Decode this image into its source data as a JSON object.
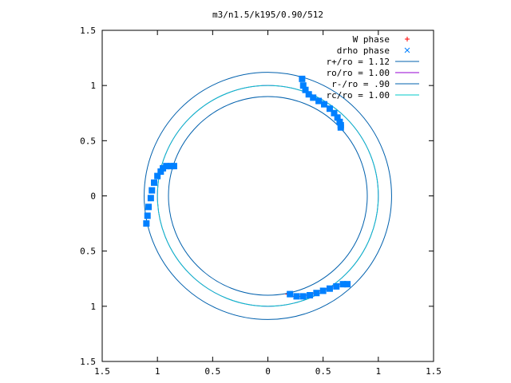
{
  "chart_data": {
    "type": "scatter",
    "title": "m3/n1.5/k195/0.90/512",
    "xlabel": "",
    "ylabel": "",
    "xlim": [
      -1.5,
      1.5
    ],
    "ylim": [
      -1.5,
      1.5
    ],
    "grid": false,
    "legend_position": "top-right",
    "x_tick_labels": [
      "1.5",
      "1",
      "0.5",
      "0",
      "0.5",
      "1",
      "1.5"
    ],
    "y_tick_labels": [
      "1.5",
      "1",
      "0.5",
      "0",
      "0.5",
      "1",
      "1.5"
    ],
    "x_ticks": [
      -1.5,
      -1.0,
      -0.5,
      0,
      0.5,
      1.0,
      1.5
    ],
    "y_ticks": [
      1.5,
      1.0,
      0.5,
      0,
      -0.5,
      -1.0,
      -1.5
    ],
    "series": [
      {
        "name": "W phase",
        "marker": "plus",
        "color": "#ff0000",
        "x": [
          -1.1,
          -1.09,
          -1.08,
          -1.06,
          -1.05,
          -1.03,
          -1.0,
          -0.97,
          -0.95,
          -0.92,
          -0.88,
          -0.85,
          0.18,
          0.24,
          0.3,
          0.36,
          0.42,
          0.48,
          0.54,
          0.6,
          0.66,
          0.72
        ],
        "y": [
          -0.25,
          -0.18,
          -0.1,
          -0.02,
          0.05,
          0.12,
          0.18,
          0.22,
          0.25,
          0.27,
          0.27,
          0.27,
          -0.89,
          -0.91,
          -0.91,
          -0.9,
          -0.88,
          -0.86,
          -0.84,
          -0.82,
          -0.8,
          -0.8
        ]
      },
      {
        "name": "drho phase",
        "marker": "cross",
        "color": "#0080ff",
        "x": [
          -1.1,
          -1.09,
          -1.08,
          -1.06,
          -1.05,
          -1.03,
          -1.0,
          -0.97,
          -0.95,
          -0.92,
          -0.88,
          -0.85,
          0.31,
          0.32,
          0.34,
          0.37,
          0.41,
          0.46,
          0.51,
          0.56,
          0.6,
          0.63,
          0.65,
          0.66,
          0.66,
          0.2,
          0.26,
          0.32,
          0.38,
          0.44,
          0.5,
          0.56,
          0.62,
          0.68,
          0.72
        ],
        "y": [
          -0.25,
          -0.18,
          -0.1,
          -0.02,
          0.05,
          0.12,
          0.18,
          0.22,
          0.25,
          0.27,
          0.27,
          0.27,
          1.06,
          1.0,
          0.96,
          0.92,
          0.89,
          0.86,
          0.83,
          0.79,
          0.75,
          0.71,
          0.67,
          0.64,
          0.62,
          -0.89,
          -0.91,
          -0.91,
          -0.9,
          -0.88,
          -0.86,
          -0.84,
          -0.82,
          -0.8,
          -0.8
        ]
      },
      {
        "name": "r+/ro = 1.12",
        "type": "circle",
        "radius": 1.12,
        "color": "#0060ad"
      },
      {
        "name": "ro/ro = 1.00",
        "type": "circle",
        "radius": 1.0,
        "color": "#9400d3"
      },
      {
        "name": "r-/ro = .90",
        "type": "circle",
        "radius": 0.9,
        "color": "#0060ad"
      },
      {
        "name": "rc/ro = 1.00",
        "type": "circle",
        "radius": 1.0,
        "color": "#00c8c8"
      }
    ]
  }
}
